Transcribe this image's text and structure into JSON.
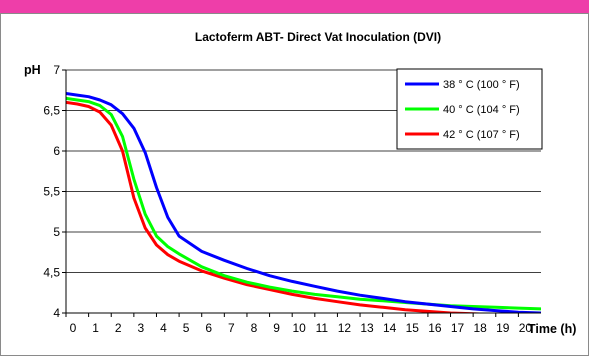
{
  "chart_data": {
    "type": "line",
    "title": "Lactoferm ABT- Direct Vat Inoculation (DVI)",
    "xlabel": "Time (h)",
    "ylabel": "pH",
    "xlim": [
      0,
      21
    ],
    "ylim": [
      4,
      7
    ],
    "x_ticks": [
      "0",
      "1",
      "2",
      "3",
      "4",
      "5",
      "6",
      "7",
      "8",
      "9",
      "10",
      "11",
      "12",
      "13",
      "14",
      "15",
      "16",
      "17",
      "18",
      "19",
      "20"
    ],
    "y_ticks": [
      "4",
      "4,5",
      "5",
      "5,5",
      "6",
      "6,5",
      "7"
    ],
    "grid": "horizontal",
    "legend_position": "top-right",
    "series": [
      {
        "name": "38 ° C (100 ° F)",
        "color": "#0000ff",
        "points": [
          [
            0,
            6.71
          ],
          [
            0.5,
            6.69
          ],
          [
            1,
            6.67
          ],
          [
            1.5,
            6.63
          ],
          [
            2,
            6.57
          ],
          [
            2.5,
            6.46
          ],
          [
            3,
            6.28
          ],
          [
            3.5,
            5.98
          ],
          [
            4,
            5.55
          ],
          [
            4.5,
            5.18
          ],
          [
            5,
            4.95
          ],
          [
            6,
            4.76
          ],
          [
            7,
            4.65
          ],
          [
            8,
            4.55
          ],
          [
            9,
            4.46
          ],
          [
            10,
            4.39
          ],
          [
            11,
            4.33
          ],
          [
            12,
            4.27
          ],
          [
            13,
            4.22
          ],
          [
            14,
            4.18
          ],
          [
            15,
            4.14
          ],
          [
            16,
            4.11
          ],
          [
            17,
            4.08
          ],
          [
            18,
            4.05
          ],
          [
            19,
            4.03
          ],
          [
            20,
            4.01
          ],
          [
            21,
            4.0
          ]
        ]
      },
      {
        "name": "40 ° C (104 ° F)",
        "color": "#00ff00",
        "points": [
          [
            0,
            6.65
          ],
          [
            0.5,
            6.63
          ],
          [
            1,
            6.61
          ],
          [
            1.5,
            6.56
          ],
          [
            2,
            6.45
          ],
          [
            2.5,
            6.18
          ],
          [
            3,
            5.65
          ],
          [
            3.5,
            5.22
          ],
          [
            4,
            4.95
          ],
          [
            4.5,
            4.82
          ],
          [
            5,
            4.73
          ],
          [
            6,
            4.57
          ],
          [
            7,
            4.46
          ],
          [
            8,
            4.38
          ],
          [
            9,
            4.32
          ],
          [
            10,
            4.27
          ],
          [
            11,
            4.23
          ],
          [
            12,
            4.2
          ],
          [
            13,
            4.17
          ],
          [
            14,
            4.15
          ],
          [
            15,
            4.13
          ],
          [
            16,
            4.11
          ],
          [
            17,
            4.09
          ],
          [
            18,
            4.08
          ],
          [
            19,
            4.07
          ],
          [
            20,
            4.06
          ],
          [
            21,
            4.05
          ]
        ]
      },
      {
        "name": "42 ° C (107 ° F)",
        "color": "#ff0000",
        "points": [
          [
            0,
            6.6
          ],
          [
            0.5,
            6.58
          ],
          [
            1,
            6.55
          ],
          [
            1.5,
            6.48
          ],
          [
            2,
            6.32
          ],
          [
            2.5,
            6.0
          ],
          [
            3,
            5.42
          ],
          [
            3.5,
            5.05
          ],
          [
            4,
            4.84
          ],
          [
            4.5,
            4.72
          ],
          [
            5,
            4.64
          ],
          [
            6,
            4.52
          ],
          [
            7,
            4.43
          ],
          [
            8,
            4.35
          ],
          [
            9,
            4.29
          ],
          [
            10,
            4.23
          ],
          [
            11,
            4.18
          ],
          [
            12,
            4.14
          ],
          [
            13,
            4.1
          ],
          [
            14,
            4.07
          ],
          [
            15,
            4.04
          ],
          [
            16,
            4.02
          ],
          [
            17,
            4.0
          ],
          [
            18,
            3.99
          ],
          [
            19,
            3.98
          ],
          [
            20,
            3.98
          ],
          [
            21,
            3.98
          ]
        ]
      }
    ]
  }
}
